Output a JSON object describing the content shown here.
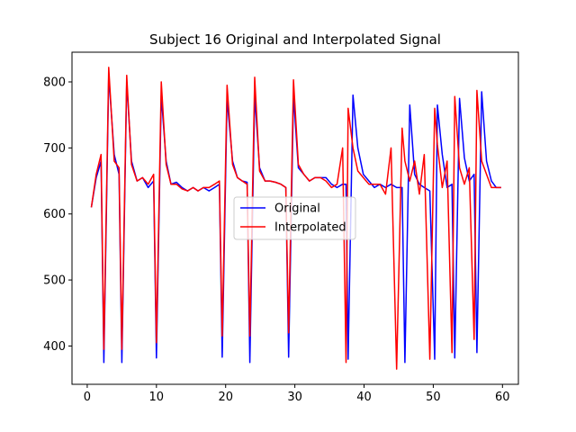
{
  "chart_data": {
    "type": "line",
    "title": "Subject 16 Original and Interpolated Signal",
    "xlabel": "",
    "ylabel": "",
    "xlim": [
      -2.2,
      62.3
    ],
    "ylim": [
      342,
      845
    ],
    "xticks": [
      0,
      10,
      20,
      30,
      40,
      50,
      60
    ],
    "yticks": [
      400,
      500,
      600,
      700,
      800
    ],
    "grid": false,
    "legend_position": "center",
    "series": [
      {
        "name": "Original",
        "color": "#0000ff",
        "x": [
          0.6,
          1.3,
          2.0,
          2.4,
          3.1,
          3.9,
          4.6,
          5.0,
          5.7,
          6.4,
          7.2,
          8.0,
          8.8,
          9.6,
          10.0,
          10.7,
          11.4,
          12.1,
          12.9,
          13.7,
          14.5,
          15.3,
          16.0,
          16.8,
          17.6,
          18.4,
          19.1,
          19.5,
          20.2,
          21.0,
          21.7,
          22.4,
          23.1,
          23.5,
          24.2,
          24.9,
          25.7,
          26.4,
          27.2,
          28.0,
          28.7,
          29.1,
          29.8,
          30.5,
          31.3,
          32.1,
          32.9,
          33.7,
          34.5,
          35.3,
          36.1,
          36.9,
          37.4,
          37.7,
          38.4,
          39.1,
          39.9,
          40.7,
          41.5,
          42.3,
          43.1,
          43.9,
          44.7,
          45.5,
          45.9,
          46.6,
          47.3,
          48.0,
          48.7,
          49.5,
          50.2,
          50.6,
          51.3,
          52.0,
          52.7,
          53.1,
          53.8,
          54.5,
          55.2,
          55.9,
          56.3,
          57.0,
          57.7,
          58.4,
          59.1,
          59.8
        ],
        "y": [
          610,
          655,
          680,
          375,
          810,
          690,
          660,
          375,
          800,
          680,
          650,
          655,
          640,
          650,
          382,
          780,
          680,
          645,
          648,
          640,
          635,
          640,
          635,
          640,
          635,
          640,
          645,
          383,
          775,
          680,
          655,
          650,
          648,
          375,
          780,
          670,
          650,
          650,
          648,
          645,
          640,
          383,
          780,
          670,
          660,
          650,
          655,
          655,
          655,
          645,
          640,
          645,
          645,
          380,
          780,
          700,
          660,
          650,
          640,
          645,
          640,
          645,
          640,
          640,
          375,
          765,
          660,
          645,
          640,
          635,
          380,
          765,
          690,
          640,
          645,
          382,
          775,
          685,
          650,
          660,
          390,
          785,
          680,
          650,
          640,
          640
        ]
      },
      {
        "name": "Interpolated",
        "color": "#ff0000",
        "x": [
          0.6,
          1.3,
          2.0,
          2.4,
          3.1,
          3.9,
          4.6,
          5.0,
          5.7,
          6.4,
          7.2,
          8.0,
          8.8,
          9.6,
          10.0,
          10.7,
          11.4,
          12.1,
          12.9,
          13.7,
          14.5,
          15.3,
          16.0,
          16.8,
          17.6,
          18.4,
          19.1,
          19.5,
          20.2,
          21.0,
          21.7,
          22.4,
          23.1,
          23.5,
          24.2,
          24.9,
          25.7,
          26.4,
          27.2,
          28.0,
          28.7,
          29.1,
          29.8,
          30.5,
          31.3,
          32.1,
          32.9,
          33.7,
          34.5,
          35.3,
          36.1,
          36.9,
          37.4,
          37.7,
          38.4,
          39.1,
          39.9,
          40.7,
          41.5,
          42.3,
          43.1,
          43.9,
          44.7,
          45.5,
          45.9,
          46.6,
          47.3,
          48.0,
          48.7,
          49.5,
          50.2,
          50.6,
          51.3,
          52.0,
          52.7,
          53.1,
          53.8,
          54.5,
          55.2,
          55.9,
          56.3,
          57.0,
          57.7,
          58.4,
          59.1,
          59.8
        ],
        "y": [
          610,
          660,
          690,
          395,
          822,
          680,
          670,
          395,
          810,
          675,
          650,
          655,
          645,
          660,
          405,
          800,
          675,
          645,
          645,
          638,
          635,
          640,
          635,
          640,
          640,
          645,
          650,
          415,
          795,
          675,
          655,
          650,
          645,
          415,
          807,
          665,
          650,
          650,
          648,
          645,
          640,
          420,
          803,
          675,
          660,
          650,
          655,
          655,
          650,
          640,
          645,
          700,
          375,
          760,
          700,
          665,
          655,
          645,
          645,
          645,
          630,
          700,
          365,
          730,
          680,
          650,
          680,
          630,
          690,
          380,
          760,
          705,
          640,
          680,
          390,
          778,
          670,
          645,
          670,
          410,
          787,
          680,
          660,
          640,
          640,
          640
        ]
      }
    ]
  }
}
